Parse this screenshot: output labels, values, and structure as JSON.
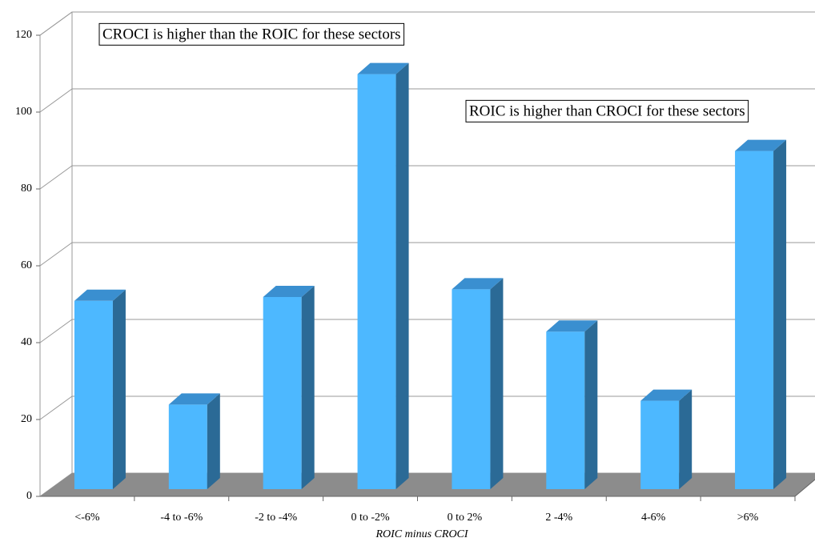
{
  "chart_data": {
    "type": "bar",
    "categories": [
      "<-6%",
      "-4 to -6%",
      "-2 to -4%",
      "0 to -2%",
      "0 to 2%",
      "2 -4%",
      "4-6%",
      ">6%"
    ],
    "values": [
      49,
      22,
      50,
      108,
      52,
      41,
      23,
      88
    ],
    "color": "#4db8ff",
    "ylim": [
      0,
      120
    ],
    "yticks": [
      0,
      20,
      40,
      60,
      80,
      100,
      120
    ],
    "grid": true,
    "x_label": "ROIC minus CROCI",
    "annotations": [
      "CROCI is higher than the ROIC for these sectors",
      "ROIC is higher than CROCI for these sectors"
    ]
  }
}
